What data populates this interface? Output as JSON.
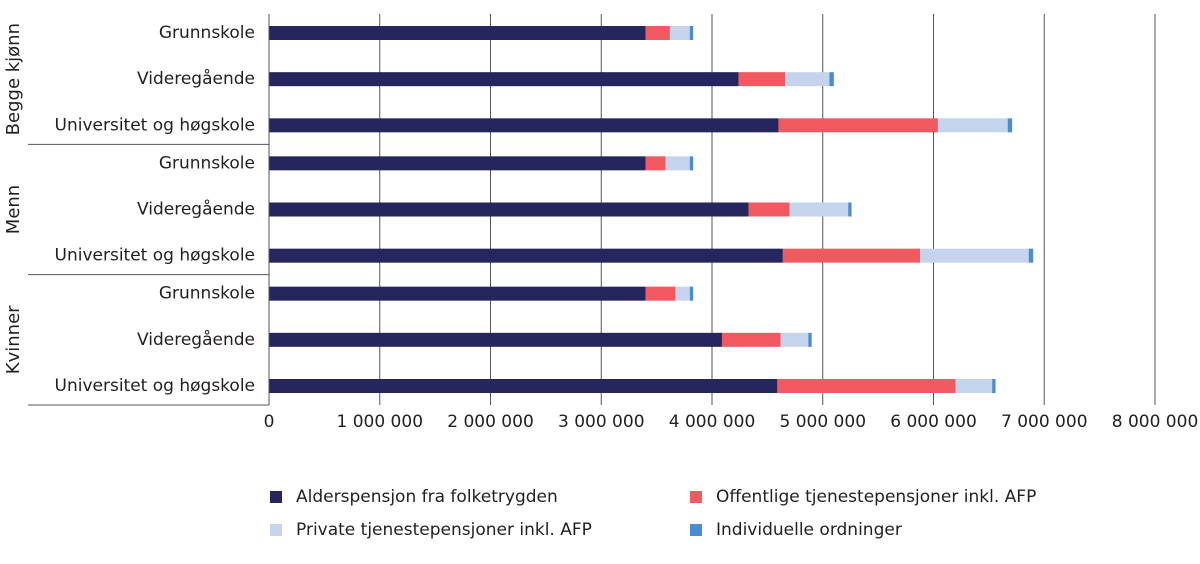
{
  "chart_data": {
    "type": "stacked-bar-horizontal",
    "groups": [
      "Begge kjønn",
      "Menn",
      "Kvinner"
    ],
    "categories": [
      "Grunnskole",
      "Videregående",
      "Universitet og høgskole",
      "Grunnskole",
      "Videregående",
      "Universitet og høgskole",
      "Grunnskole",
      "Videregående",
      "Universitet og høgskole"
    ],
    "series": [
      {
        "name": "Alderspensjon fra folketrygden",
        "color": "#25265e",
        "values": [
          3400000,
          4240000,
          4600000,
          3400000,
          4330000,
          4640000,
          3400000,
          4090000,
          4590000
        ]
      },
      {
        "name": "Offentlige tjenestepensjoner inkl. AFP",
        "color": "#f0595f",
        "values": [
          220000,
          420000,
          1440000,
          180000,
          370000,
          1240000,
          270000,
          530000,
          1610000
        ]
      },
      {
        "name": "Private tjenestepensjoner inkl. AFP",
        "color": "#c5d3ec",
        "values": [
          180000,
          400000,
          630000,
          220000,
          530000,
          980000,
          130000,
          250000,
          330000
        ]
      },
      {
        "name": "Individuelle ordninger",
        "color": "#4b8bd0",
        "values": [
          30000,
          40000,
          40000,
          30000,
          30000,
          40000,
          30000,
          30000,
          30000
        ]
      }
    ],
    "xlim": [
      0,
      8000000
    ],
    "xticks": [
      0,
      {
        "value": 1000000,
        "label": "1 000 000"
      },
      {
        "value": 2000000,
        "label": "2 000 000"
      },
      {
        "value": 3000000,
        "label": "3 000 000"
      },
      {
        "value": 4000000,
        "label": "4 000 000"
      },
      {
        "value": 5000000,
        "label": "5 000 000"
      },
      {
        "value": 6000000,
        "label": "6 000 000"
      },
      {
        "value": 7000000,
        "label": "7 000 000"
      },
      {
        "value": 8000000,
        "label": "8 000 000"
      }
    ],
    "grid": true
  }
}
